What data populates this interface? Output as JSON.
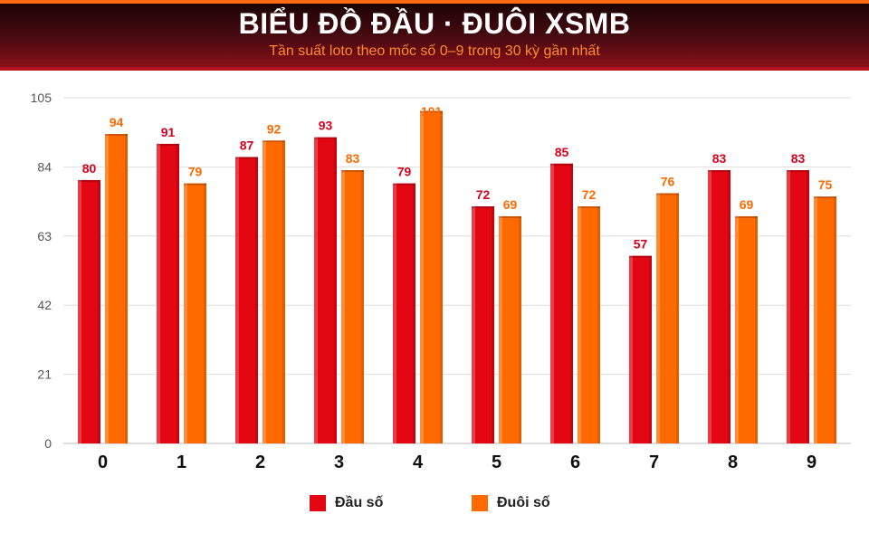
{
  "header": {
    "title": "BIỂU ĐỒ ĐẦU · ĐUÔI XSMB",
    "subtitle": "Tần suất loto theo mốc số 0–9 trong 30 kỳ gần nhất"
  },
  "chart_data": {
    "type": "bar",
    "title": "BIỂU ĐỒ ĐẦU · ĐUÔI XSMB",
    "subtitle": "Tần suất loto theo mốc số 0–9 trong 30 kỳ gần nhất",
    "xlabel": "",
    "ylabel": "",
    "categories": [
      "0",
      "1",
      "2",
      "3",
      "4",
      "5",
      "6",
      "7",
      "8",
      "9"
    ],
    "series": [
      {
        "name": "Đầu số",
        "color": "#e30613",
        "values": [
          80,
          91,
          87,
          93,
          79,
          72,
          85,
          57,
          83,
          83
        ]
      },
      {
        "name": "Đuôi số",
        "color": "#ff6a00",
        "values": [
          94,
          79,
          92,
          83,
          101,
          69,
          72,
          76,
          69,
          75
        ]
      }
    ],
    "ylim": [
      0,
      105
    ],
    "yticks": [
      0,
      21,
      42,
      63,
      84,
      105
    ],
    "grid": true,
    "legend_position": "bottom-center"
  }
}
